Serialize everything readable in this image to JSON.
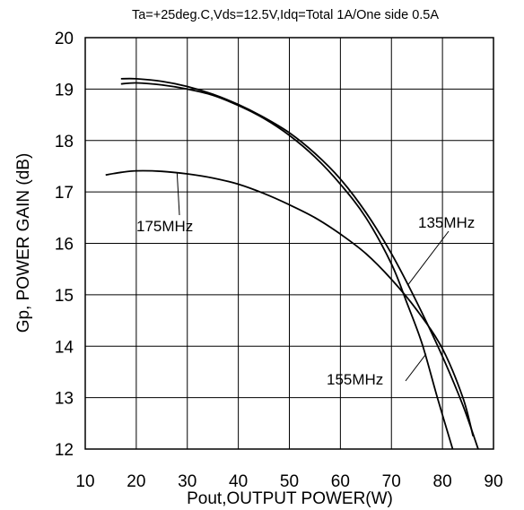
{
  "chart_data": {
    "type": "line",
    "title": "Ta=+25deg.C,Vds=12.5V,Idq=Total 1A/One side 0.5A",
    "xlabel": "Pout,OUTPUT POWER(W)",
    "ylabel": "Gp,  POWER GAIN (dB)",
    "xlim": [
      10,
      90
    ],
    "ylim": [
      12,
      20
    ],
    "x_ticks": [
      "10",
      "20",
      "30",
      "40",
      "50",
      "60",
      "70",
      "80",
      "90"
    ],
    "y_ticks": [
      "12",
      "13",
      "14",
      "15",
      "16",
      "17",
      "18",
      "19",
      "20"
    ],
    "grid": true,
    "series": [
      {
        "name": "135MHz",
        "x": [
          17,
          20,
          25,
          30,
          35,
          40,
          45,
          50,
          55,
          60,
          65,
          70,
          75,
          80,
          84,
          87
        ],
        "y": [
          19.2,
          19.2,
          19.15,
          19.05,
          18.9,
          18.7,
          18.45,
          18.15,
          17.75,
          17.25,
          16.6,
          15.8,
          14.85,
          13.8,
          12.85,
          12.0
        ]
      },
      {
        "name": "155MHz",
        "x": [
          17,
          20,
          25,
          30,
          35,
          40,
          45,
          50,
          55,
          60,
          65,
          70,
          73,
          76,
          79,
          82
        ],
        "y": [
          19.1,
          19.12,
          19.08,
          19.0,
          18.88,
          18.68,
          18.43,
          18.1,
          17.68,
          17.15,
          16.5,
          15.6,
          14.85,
          14.05,
          13.0,
          12.0
        ]
      },
      {
        "name": "175MHz",
        "x": [
          14,
          17,
          20,
          25,
          30,
          35,
          40,
          45,
          50,
          55,
          60,
          65,
          70,
          75,
          80,
          84,
          86
        ],
        "y": [
          17.33,
          17.38,
          17.41,
          17.4,
          17.35,
          17.27,
          17.15,
          16.97,
          16.75,
          16.5,
          16.18,
          15.8,
          15.3,
          14.7,
          13.95,
          13.0,
          12.25
        ]
      }
    ],
    "annotations": [
      {
        "text": "175MHz"
      },
      {
        "text": "135MHz"
      },
      {
        "text": "155MHz"
      }
    ]
  }
}
